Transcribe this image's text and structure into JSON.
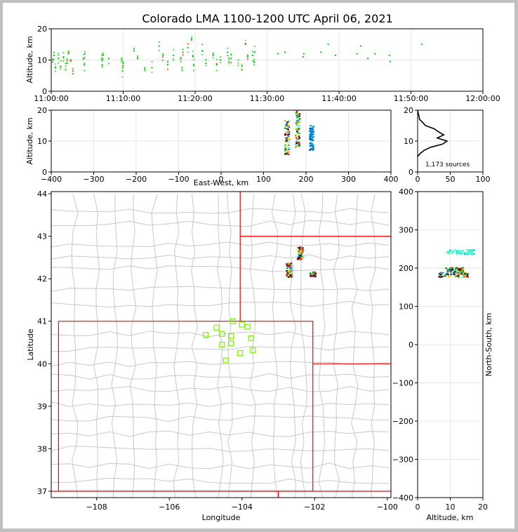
{
  "title": "Colorado LMA 1100-1200 UTC April 06, 2021",
  "chart_data": [
    {
      "type": "scatter",
      "panel": "altitude-time",
      "ylabel": "Altitude, km",
      "xlabel": "",
      "xlim": [
        "11:00:00",
        "12:00:00"
      ],
      "ylim": [
        0,
        20
      ],
      "x_tick_labels": [
        "11:00:00",
        "11:10:00",
        "11:20:00",
        "11:30:00",
        "11:40:00",
        "11:50:00",
        "12:00:00"
      ],
      "y_tick_labels": [
        "0",
        "10",
        "20"
      ],
      "grid": true,
      "points": [
        {
          "t": 0.2,
          "alt": 9.5
        },
        {
          "t": 0.4,
          "alt": 11.5
        },
        {
          "t": 0.6,
          "alt": 7.5
        },
        {
          "t": 1.0,
          "alt": 10.5
        },
        {
          "t": 1.3,
          "alt": 8.0
        },
        {
          "t": 1.7,
          "alt": 11.0
        },
        {
          "t": 2.0,
          "alt": 7.0
        },
        {
          "t": 2.2,
          "alt": 9.0
        },
        {
          "t": 2.4,
          "alt": 12.0
        },
        {
          "t": 2.7,
          "alt": 10.0
        },
        {
          "t": 3.0,
          "alt": 6.5
        },
        {
          "t": 4.5,
          "alt": 10.5
        },
        {
          "t": 4.6,
          "alt": 8.5
        },
        {
          "t": 4.7,
          "alt": 12.0
        },
        {
          "t": 7.0,
          "alt": 10.0
        },
        {
          "t": 7.1,
          "alt": 8.5
        },
        {
          "t": 7.2,
          "alt": 11.5
        },
        {
          "t": 8.0,
          "alt": 10.5
        },
        {
          "t": 9.8,
          "alt": 10.5
        },
        {
          "t": 9.9,
          "alt": 6.5
        },
        {
          "t": 10.0,
          "alt": 9.0
        },
        {
          "t": 11.5,
          "alt": 13.0
        },
        {
          "t": 12.0,
          "alt": 10.5
        },
        {
          "t": 13.0,
          "alt": 7.5
        },
        {
          "t": 14.0,
          "alt": 7.5
        },
        {
          "t": 15.0,
          "alt": 14.5
        },
        {
          "t": 15.5,
          "alt": 11.5
        },
        {
          "t": 16.2,
          "alt": 8.5
        },
        {
          "t": 17.0,
          "alt": 11.5
        },
        {
          "t": 18.0,
          "alt": 10.5
        },
        {
          "t": 18.2,
          "alt": 7.5
        },
        {
          "t": 18.3,
          "alt": 12.5
        },
        {
          "t": 19.0,
          "alt": 14.0
        },
        {
          "t": 19.5,
          "alt": 16.5
        },
        {
          "t": 19.7,
          "alt": 11.0
        },
        {
          "t": 19.8,
          "alt": 8.5
        },
        {
          "t": 21.0,
          "alt": 13.0
        },
        {
          "t": 21.5,
          "alt": 9.0
        },
        {
          "t": 22.5,
          "alt": 11.5
        },
        {
          "t": 23.0,
          "alt": 8.5
        },
        {
          "t": 23.5,
          "alt": 10.0
        },
        {
          "t": 24.5,
          "alt": 12.5
        },
        {
          "t": 24.7,
          "alt": 9.5
        },
        {
          "t": 25.0,
          "alt": 10.5
        },
        {
          "t": 26.0,
          "alt": 10.0
        },
        {
          "t": 26.5,
          "alt": 8.0
        },
        {
          "t": 27.0,
          "alt": 15.0
        },
        {
          "t": 27.3,
          "alt": 11.0
        },
        {
          "t": 28.0,
          "alt": 11.5
        },
        {
          "t": 28.2,
          "alt": 9.5
        },
        {
          "t": 28.3,
          "alt": 12.5
        },
        {
          "t": 31.5,
          "alt": 12.0
        },
        {
          "t": 32.5,
          "alt": 12.5
        },
        {
          "t": 35.0,
          "alt": 11.0
        },
        {
          "t": 35.1,
          "alt": 12.0
        },
        {
          "t": 37.5,
          "alt": 12.5
        },
        {
          "t": 38.5,
          "alt": 15.0
        },
        {
          "t": 39.5,
          "alt": 11.5
        },
        {
          "t": 42.5,
          "alt": 12.0
        },
        {
          "t": 43.0,
          "alt": 14.5
        },
        {
          "t": 44.0,
          "alt": 10.5
        },
        {
          "t": 45.0,
          "alt": 12.0
        },
        {
          "t": 47.0,
          "alt": 11.5
        },
        {
          "t": 47.1,
          "alt": 9.5
        },
        {
          "t": 51.5,
          "alt": 15.0
        }
      ]
    },
    {
      "type": "scatter",
      "panel": "altitude-eastwest",
      "xlabel": "East-West, km",
      "ylabel": "Altitude, km",
      "xlim": [
        -400,
        400
      ],
      "ylim": [
        0,
        20
      ],
      "x_tick_labels": [
        "-400",
        "-300",
        "-200",
        "-100",
        "0",
        "100",
        "200",
        "300",
        "400"
      ],
      "y_tick_labels": [
        "0",
        "10",
        "20"
      ],
      "grid": true,
      "clusters": [
        {
          "x": 155,
          "alt_min": 5.5,
          "alt_max": 17.0
        },
        {
          "x": 180,
          "alt_min": 8.0,
          "alt_max": 20.0
        },
        {
          "x": 213,
          "alt_min": 7.0,
          "alt_max": 15.0
        }
      ]
    },
    {
      "type": "line",
      "panel": "altitude-histogram",
      "xlim": [
        0,
        100
      ],
      "ylim": [
        0,
        20
      ],
      "x_tick_labels": [
        "0",
        "50",
        "100"
      ],
      "y_tick_labels": [
        "0",
        "10",
        "20"
      ],
      "annotation": "1,173 sources",
      "grid": true,
      "profile": [
        {
          "alt": 5.0,
          "count": 0
        },
        {
          "alt": 6.0,
          "count": 4
        },
        {
          "alt": 7.0,
          "count": 10
        },
        {
          "alt": 8.0,
          "count": 20
        },
        {
          "alt": 9.0,
          "count": 38
        },
        {
          "alt": 10.0,
          "count": 45
        },
        {
          "alt": 11.0,
          "count": 30
        },
        {
          "alt": 12.0,
          "count": 40
        },
        {
          "alt": 13.0,
          "count": 32
        },
        {
          "alt": 14.0,
          "count": 25
        },
        {
          "alt": 15.0,
          "count": 12
        },
        {
          "alt": 16.0,
          "count": 8
        },
        {
          "alt": 17.0,
          "count": 3
        },
        {
          "alt": 18.0,
          "count": 2
        },
        {
          "alt": 19.0,
          "count": 1
        },
        {
          "alt": 20.0,
          "count": 0
        }
      ]
    },
    {
      "type": "scatter",
      "panel": "plan-view-map",
      "xlabel": "Longitude",
      "ylabel": "Latitude",
      "xlim": [
        -109.25,
        -99.9
      ],
      "ylim": [
        36.85,
        44.05
      ],
      "x_tick_labels": [
        "−108",
        "−106",
        "−104",
        "−102",
        "−100"
      ],
      "y_tick_labels": [
        "37",
        "38",
        "39",
        "40",
        "41",
        "42",
        "43",
        "44"
      ],
      "clusters": [
        {
          "lon": -102.7,
          "lat": 42.2,
          "lat_span": 0.35
        },
        {
          "lon": -102.4,
          "lat": 42.6,
          "lat_span": 0.3
        },
        {
          "lon": -102.05,
          "lat": 42.1,
          "lat_span": 0.1
        }
      ],
      "stations": [
        {
          "lon": -104.25,
          "lat": 41.0
        },
        {
          "lon": -104.7,
          "lat": 40.85
        },
        {
          "lon": -104.0,
          "lat": 40.92
        },
        {
          "lon": -103.85,
          "lat": 40.87
        },
        {
          "lon": -105.0,
          "lat": 40.68
        },
        {
          "lon": -104.55,
          "lat": 40.7
        },
        {
          "lon": -104.3,
          "lat": 40.65
        },
        {
          "lon": -103.75,
          "lat": 40.6
        },
        {
          "lon": -104.55,
          "lat": 40.45
        },
        {
          "lon": -104.3,
          "lat": 40.48
        },
        {
          "lon": -103.7,
          "lat": 40.32
        },
        {
          "lon": -104.05,
          "lat": 40.25
        },
        {
          "lon": -104.45,
          "lat": 40.08
        }
      ]
    },
    {
      "type": "scatter",
      "panel": "northsouth-altitude",
      "xlabel": "Altitude, km",
      "ylabel": "North-South, km",
      "xlim": [
        0,
        20
      ],
      "ylim": [
        -400,
        400
      ],
      "x_tick_labels": [
        "0",
        "10",
        "20"
      ],
      "y_tick_labels": [
        "−400",
        "−300",
        "−200",
        "−100",
        "0",
        "100",
        "200",
        "300",
        "400"
      ],
      "grid": true,
      "clusters": [
        {
          "ns": 182,
          "alt_min": 6.5,
          "alt_max": 15.5
        },
        {
          "ns": 195,
          "alt_min": 8.5,
          "alt_max": 14.0
        },
        {
          "ns": 242,
          "alt_min": 9.0,
          "alt_max": 17.5
        }
      ]
    }
  ],
  "colors": {
    "state_border": "#ff0000",
    "county_border": "#c8c8c8",
    "station": "#7cfc00",
    "grid": "#e6e6e6"
  }
}
